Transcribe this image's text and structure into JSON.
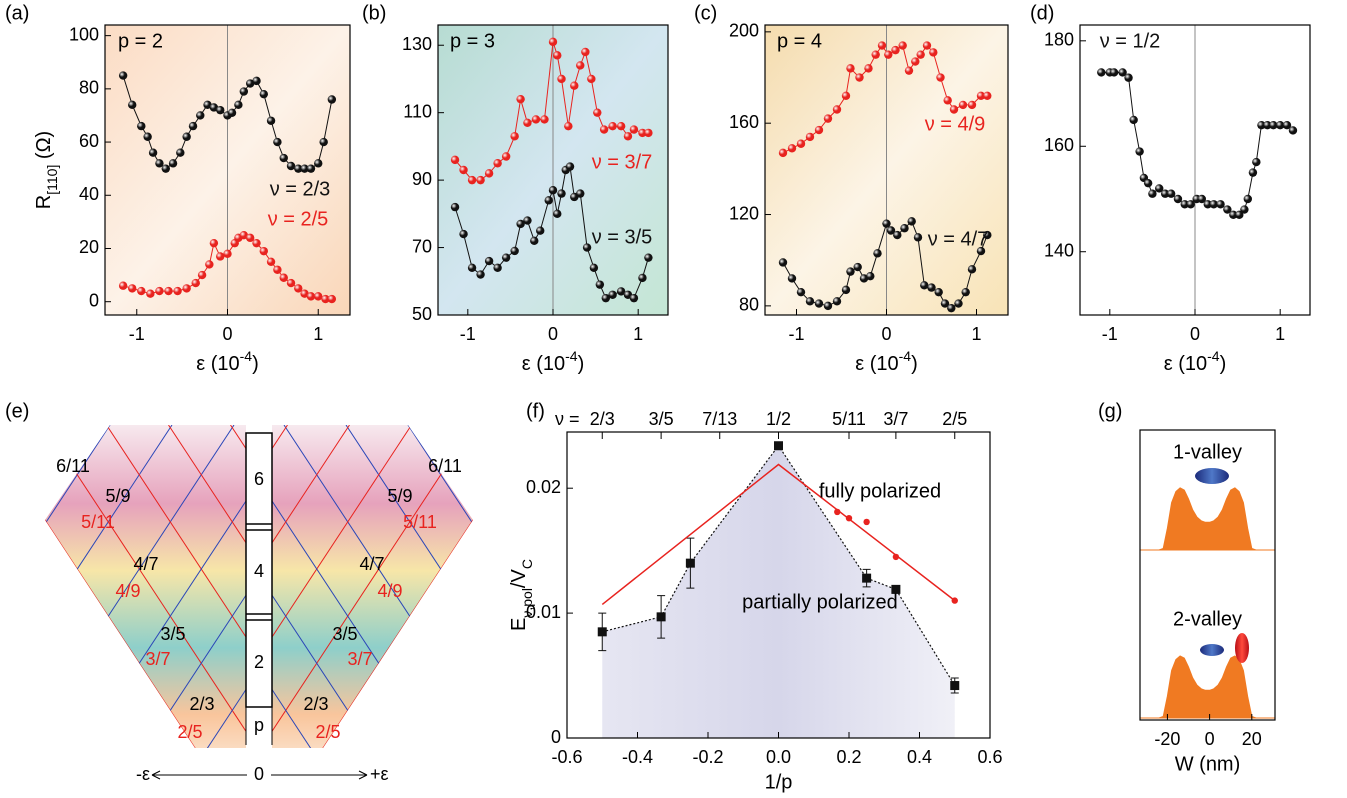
{
  "chart_data": [
    {
      "type": "line",
      "panel": "(a)",
      "annotation": "p = 2",
      "xlabel": "ε (10",
      "xlabel_sup": "-4",
      "xlabel_end": ")",
      "ylabel": "R",
      "ylabel_sub": "[110]",
      "ylabel_end": " (Ω)",
      "xlim": [
        -1.35,
        1.35
      ],
      "xticks": [
        -1,
        0,
        1
      ],
      "ylim": [
        -5,
        104
      ],
      "yticks": [
        0,
        20,
        40,
        60,
        80,
        100
      ],
      "background": [
        "#fbdcc4",
        "#fdf2e8",
        "#f9d6b8"
      ],
      "series": [
        {
          "name": "ν = 2/3",
          "color": "#111111",
          "x": [
            -1.15,
            -1.05,
            -0.95,
            -0.88,
            -0.82,
            -0.75,
            -0.68,
            -0.6,
            -0.52,
            -0.45,
            -0.38,
            -0.3,
            -0.22,
            -0.15,
            -0.08,
            0,
            0.05,
            0.12,
            0.18,
            0.25,
            0.32,
            0.4,
            0.48,
            0.55,
            0.62,
            0.7,
            0.78,
            0.85,
            0.92,
            1.0,
            1.06,
            1.15
          ],
          "values": [
            85,
            74,
            66,
            62,
            56,
            52,
            50,
            52,
            56,
            62,
            66,
            70,
            74,
            73,
            72,
            70,
            71,
            74,
            79,
            82,
            83,
            78,
            68,
            60,
            54,
            51,
            50,
            50,
            50,
            52,
            60,
            76
          ]
        },
        {
          "name": "ν = 2/5",
          "color": "#e8231f",
          "x": [
            -1.15,
            -1.05,
            -0.95,
            -0.85,
            -0.75,
            -0.65,
            -0.55,
            -0.45,
            -0.35,
            -0.28,
            -0.2,
            -0.15,
            -0.08,
            0,
            0.08,
            0.12,
            0.18,
            0.25,
            0.32,
            0.4,
            0.48,
            0.55,
            0.62,
            0.7,
            0.78,
            0.85,
            0.92,
            1.0,
            1.08,
            1.15
          ],
          "values": [
            6,
            5,
            4,
            3,
            4,
            4,
            4,
            5,
            7,
            10,
            14,
            22,
            17,
            18,
            22,
            24,
            25,
            24,
            22,
            19,
            15,
            12,
            9,
            7,
            5,
            3,
            2,
            2,
            1,
            1
          ]
        }
      ]
    },
    {
      "type": "line",
      "panel": "(b)",
      "annotation": "p = 3",
      "xlabel": "ε (10",
      "xlabel_sup": "-4",
      "xlabel_end": ")",
      "xlim": [
        -1.35,
        1.35
      ],
      "xticks": [
        -1,
        0,
        1
      ],
      "ylim": [
        50,
        136
      ],
      "yticks": [
        50,
        70,
        90,
        110,
        130
      ],
      "background": [
        "#b7dcd2",
        "#d3e6f0",
        "#c4e6d4"
      ],
      "series": [
        {
          "name": "ν = 3/7",
          "color": "#e8231f",
          "x": [
            -1.15,
            -1.05,
            -0.95,
            -0.85,
            -0.75,
            -0.65,
            -0.55,
            -0.45,
            -0.38,
            -0.3,
            -0.2,
            -0.1,
            0,
            0.05,
            0.1,
            0.18,
            0.25,
            0.32,
            0.38,
            0.45,
            0.52,
            0.6,
            0.7,
            0.8,
            0.88,
            0.95,
            1.05,
            1.12
          ],
          "values": [
            96,
            93,
            90,
            90,
            92,
            95,
            97,
            103,
            114,
            107,
            108,
            108,
            131,
            127,
            120,
            106,
            118,
            124,
            128,
            120,
            110,
            105,
            106,
            106,
            103,
            105,
            104,
            104
          ]
        },
        {
          "name": "ν = 3/5",
          "color": "#111111",
          "x": [
            -1.15,
            -1.05,
            -0.95,
            -0.85,
            -0.75,
            -0.65,
            -0.55,
            -0.45,
            -0.38,
            -0.3,
            -0.22,
            -0.15,
            -0.05,
            0,
            0.05,
            0.1,
            0.15,
            0.2,
            0.25,
            0.32,
            0.4,
            0.48,
            0.55,
            0.62,
            0.7,
            0.8,
            0.88,
            0.95,
            1.05,
            1.12
          ],
          "values": [
            82,
            74,
            64,
            62,
            66,
            64,
            67,
            69,
            77,
            78,
            72,
            75,
            84,
            87,
            80,
            86,
            93,
            94,
            85,
            86,
            70,
            64,
            59,
            55,
            56,
            57,
            56,
            55,
            61,
            67
          ]
        }
      ]
    },
    {
      "type": "line",
      "panel": "(c)",
      "annotation": "p = 4",
      "xlabel": "ε (10",
      "xlabel_sup": "-4",
      "xlabel_end": ")",
      "xlim": [
        -1.35,
        1.35
      ],
      "xticks": [
        -1,
        0,
        1
      ],
      "ylim": [
        76,
        203
      ],
      "yticks": [
        80,
        120,
        160,
        200
      ],
      "background": [
        "#f5dcae",
        "#fcf4e6",
        "#f8e3b6"
      ],
      "series": [
        {
          "name": "ν = 4/9",
          "color": "#e8231f",
          "x": [
            -1.15,
            -1.05,
            -0.95,
            -0.85,
            -0.75,
            -0.65,
            -0.55,
            -0.45,
            -0.4,
            -0.3,
            -0.2,
            -0.12,
            -0.05,
            0.02,
            0.1,
            0.18,
            0.25,
            0.32,
            0.38,
            0.45,
            0.52,
            0.6,
            0.68,
            0.75,
            0.85,
            0.95,
            1.05,
            1.12
          ],
          "values": [
            147,
            149,
            151,
            154,
            157,
            162,
            166,
            172,
            184,
            180,
            184,
            190,
            194,
            190,
            192,
            194,
            183,
            187,
            190,
            194,
            191,
            180,
            170,
            166,
            168,
            168,
            172,
            172
          ]
        },
        {
          "name": "ν = 4/7",
          "color": "#111111",
          "x": [
            -1.15,
            -1.05,
            -0.95,
            -0.85,
            -0.75,
            -0.65,
            -0.55,
            -0.45,
            -0.4,
            -0.32,
            -0.25,
            -0.18,
            -0.1,
            0,
            0.05,
            0.12,
            0.2,
            0.28,
            0.35,
            0.42,
            0.5,
            0.58,
            0.65,
            0.72,
            0.8,
            0.88,
            0.95,
            1.05,
            1.12
          ],
          "values": [
            99,
            92,
            86,
            82,
            81,
            80,
            82,
            87,
            95,
            97,
            92,
            93,
            103,
            116,
            113,
            111,
            114,
            117,
            110,
            89,
            88,
            86,
            81,
            79,
            81,
            86,
            96,
            104,
            111
          ]
        }
      ]
    },
    {
      "type": "line",
      "panel": "(d)",
      "xlabel": "ε (10",
      "xlabel_sup": "-4",
      "xlabel_end": ")",
      "xlim": [
        -1.35,
        1.35
      ],
      "xticks": [
        -1,
        0,
        1
      ],
      "ylim": [
        128,
        183
      ],
      "yticks": [
        140,
        160,
        180
      ],
      "series": [
        {
          "name": "ν = 1/2",
          "color": "#111111",
          "x": [
            -1.1,
            -1.0,
            -0.95,
            -0.85,
            -0.78,
            -0.72,
            -0.65,
            -0.6,
            -0.55,
            -0.5,
            -0.42,
            -0.35,
            -0.28,
            -0.2,
            -0.12,
            -0.05,
            0.02,
            0.08,
            0.15,
            0.22,
            0.3,
            0.38,
            0.45,
            0.52,
            0.58,
            0.62,
            0.68,
            0.72,
            0.78,
            0.85,
            0.92,
            1.0,
            1.08,
            1.15
          ],
          "values": [
            174,
            174,
            174,
            174,
            173,
            165,
            159,
            154,
            153,
            151,
            152,
            151,
            151,
            150,
            149,
            149,
            150,
            150,
            149,
            149,
            149,
            148,
            147,
            147,
            148,
            150,
            155,
            157,
            164,
            164,
            164,
            164,
            164,
            163
          ]
        }
      ]
    },
    {
      "type": "scatter",
      "panel": "(f)",
      "xlabel": "1/p",
      "ylabel": "E",
      "ylabel_sub": "ν,pol",
      "ylabel_end": "/V",
      "ylabel_sub2": "C",
      "top_label": "ν =",
      "top_ticks": [
        {
          "value": -0.5,
          "label": "2/3"
        },
        {
          "value": -0.333,
          "label": "3/5"
        },
        {
          "value": -0.1667,
          "label": "7/13"
        },
        {
          "value": 0,
          "label": "1/2"
        },
        {
          "value": 0.2,
          "label": "5/11"
        },
        {
          "value": 0.333,
          "label": "3/7"
        },
        {
          "value": 0.5,
          "label": "2/5"
        }
      ],
      "annotations": [
        "fully polarized",
        "partially polarized"
      ],
      "xlim": [
        -0.6,
        0.6
      ],
      "xticks": [
        -0.6,
        -0.4,
        -0.2,
        {
          "value": 0,
          "label": "0.0"
        },
        0.2,
        0.4,
        0.6
      ],
      "ylim": [
        0,
        0.0245
      ],
      "yticks": [
        0,
        0.01,
        0.02
      ],
      "fill": [
        "#e6e6f2",
        "#d6d6ea",
        "#f0f0f7"
      ],
      "series": [
        {
          "color": "#111111",
          "marker": "square",
          "line": "dotted",
          "x": [
            -0.5,
            -0.333,
            -0.25,
            0,
            0.25,
            0.333,
            0.5
          ],
          "values": [
            0.0085,
            0.0097,
            0.014,
            0.0234,
            0.0128,
            0.0119,
            0.0042
          ],
          "errors": [
            0.0015,
            0.0017,
            0.002,
            0.0003,
            0.0007,
            0.0003,
            0.0006
          ]
        },
        {
          "color": "#e8231f",
          "marker": "none",
          "line": "solid",
          "x": [
            -0.5,
            0,
            0.5
          ],
          "values": [
            0.0107,
            0.0219,
            0.011
          ]
        },
        {
          "color": "#e8231f",
          "marker": "circle",
          "line": "none",
          "x": [
            0.1667,
            0.2,
            0.25,
            0.333,
            0.5
          ],
          "values": [
            0.0181,
            0.0176,
            0.0173,
            0.0145,
            0.011
          ]
        }
      ]
    },
    {
      "type": "area",
      "panel": "(g)",
      "panels": [
        "1-valley",
        "2-valley"
      ],
      "xlabel": "W (nm)",
      "color": "#f07a22",
      "xlim": [
        -33,
        31
      ],
      "xticks": [
        -20,
        0,
        20
      ],
      "ylim": [
        0,
        1
      ],
      "x": [
        -33,
        -24,
        -22,
        -20,
        -18,
        -16,
        -14,
        -12,
        -10,
        -8,
        -6,
        -4,
        -2,
        0,
        2,
        4,
        6,
        8,
        10,
        12,
        14,
        16,
        18,
        20,
        22,
        31
      ],
      "values": [
        0,
        0,
        0.02,
        0.3,
        0.65,
        0.8,
        0.85,
        0.82,
        0.7,
        0.55,
        0.45,
        0.4,
        0.38,
        0.38,
        0.4,
        0.45,
        0.55,
        0.7,
        0.82,
        0.85,
        0.8,
        0.65,
        0.3,
        0.02,
        0,
        0
      ]
    }
  ],
  "diagram": {
    "panel": "(e)",
    "column": [
      "6",
      "4",
      "2",
      "p"
    ],
    "left": [
      {
        "text": "6/11",
        "color": "#000000"
      },
      {
        "text": "5/9",
        "color": "#000000"
      },
      {
        "text": "5/11",
        "color": "#e8231f"
      },
      {
        "text": "4/7",
        "color": "#000000"
      },
      {
        "text": "4/9",
        "color": "#e8231f"
      },
      {
        "text": "3/5",
        "color": "#000000"
      },
      {
        "text": "3/7",
        "color": "#e8231f"
      },
      {
        "text": "2/3",
        "color": "#000000"
      },
      {
        "text": "2/5",
        "color": "#e8231f"
      }
    ],
    "right": [
      {
        "text": "6/11",
        "color": "#000000"
      },
      {
        "text": "5/9",
        "color": "#000000"
      },
      {
        "text": "5/11",
        "color": "#e8231f"
      },
      {
        "text": "4/7",
        "color": "#000000"
      },
      {
        "text": "4/9",
        "color": "#e8231f"
      },
      {
        "text": "3/5",
        "color": "#000000"
      },
      {
        "text": "3/7",
        "color": "#e8231f"
      },
      {
        "text": "2/3",
        "color": "#000000"
      },
      {
        "text": "2/5",
        "color": "#e8231f"
      }
    ],
    "axis": {
      "minus": "-ε",
      "zero": "0",
      "plus": "+ε"
    }
  }
}
